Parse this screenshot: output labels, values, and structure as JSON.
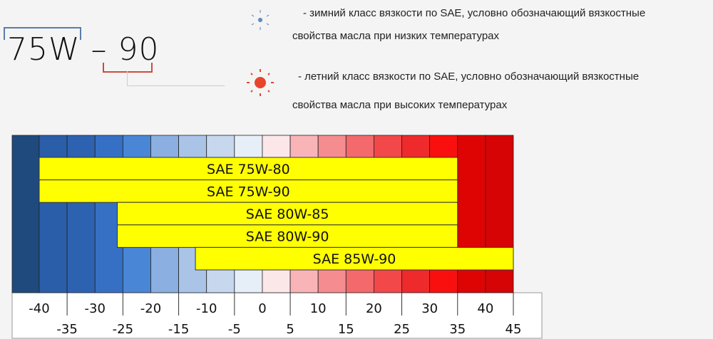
{
  "header": {
    "code_winter": "75W",
    "code_dash": "–",
    "code_summer": "90"
  },
  "legend": {
    "winter": {
      "icon": "snowflake-icon",
      "line1": "- зимний класс вязкости по SAE, условно обозначающий вязкостные",
      "line2": "свойства масла при низких температурах"
    },
    "summer": {
      "icon": "sun-icon",
      "line1": "- летний класс вязкости по SAE, условно обозначающий вязкостные",
      "line2": "свойства масла при высоких температурах"
    }
  },
  "chart_data": {
    "type": "range-bar",
    "xlim": [
      -40,
      45
    ],
    "ticks_top": [
      "-40",
      "-30",
      "-20",
      "-10",
      "0",
      "10",
      "20",
      "30",
      "40"
    ],
    "ticks_bottom": [
      "-35",
      "-25",
      "-15",
      "-5",
      "5",
      "15",
      "25",
      "35",
      "45"
    ],
    "band_colors": [
      "#1f4a7e",
      "#2b5ea8",
      "#2d62b0",
      "#3570c4",
      "#4a86d6",
      "#8aafe0",
      "#aac4e8",
      "#c6d7ee",
      "#e6eef8",
      "#fbe6e8",
      "#f9b4b8",
      "#f58c90",
      "#f3696c",
      "#f2484a",
      "#ee2a2c",
      "#fa0f0f",
      "#de0404",
      "#d60404"
    ],
    "bar_color": "#ffff00",
    "series": [
      {
        "name": "SAE 75W-80",
        "min": -40,
        "max": 35
      },
      {
        "name": "SAE 75W-90",
        "min": -40,
        "max": 35
      },
      {
        "name": "SAE 80W-85",
        "min": -26,
        "max": 35
      },
      {
        "name": "SAE 80W-90",
        "min": -26,
        "max": 35
      },
      {
        "name": "SAE 85W-90",
        "min": -12,
        "max": 45
      }
    ]
  }
}
